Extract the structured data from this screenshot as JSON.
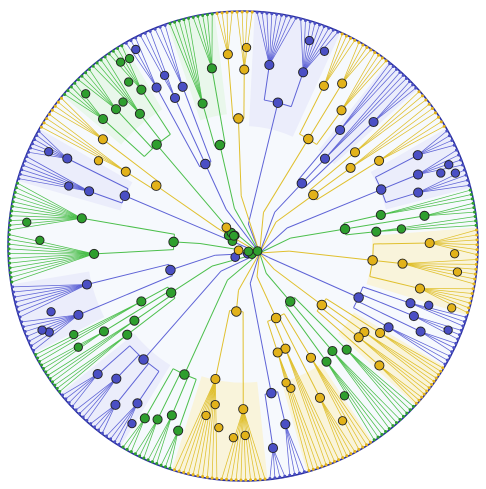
{
  "figure": {
    "type": "radial-phylogenetic-tree",
    "lineage_colors": {
      "green": "#4cbf4c",
      "blue": "#5e63d6",
      "yellow": "#e0c02e"
    },
    "node_fill_colors": {
      "green": "#2e9e2e",
      "blue": "#4a4fc4",
      "yellow": "#e2b21a"
    },
    "disc_background": "#f6f9fd",
    "outer_ring_color": "#2a2f9e",
    "sector_tint_colors": {
      "green": "#e4f5e4",
      "blue": "#e7e8fa",
      "yellow": "#faf1cf"
    },
    "clades": [
      {
        "color": "blue",
        "sweep_deg": 22
      },
      {
        "color": "yellow",
        "sweep_deg": 14
      },
      {
        "color": "blue",
        "sweep_deg": 10
      },
      {
        "color": "yellow",
        "sweep_deg": 12
      },
      {
        "color": "blue",
        "sweep_deg": 16
      },
      {
        "color": "green",
        "sweep_deg": 10
      },
      {
        "color": "yellow",
        "sweep_deg": 22
      },
      {
        "color": "blue",
        "sweep_deg": 14
      },
      {
        "color": "yellow",
        "sweep_deg": 12
      },
      {
        "color": "green",
        "sweep_deg": 14
      },
      {
        "color": "yellow",
        "sweep_deg": 18
      },
      {
        "color": "blue",
        "sweep_deg": 10
      },
      {
        "color": "yellow",
        "sweep_deg": 24
      },
      {
        "color": "green",
        "sweep_deg": 14
      },
      {
        "color": "blue",
        "sweep_deg": 20
      },
      {
        "color": "green",
        "sweep_deg": 12
      },
      {
        "color": "blue",
        "sweep_deg": 18
      },
      {
        "color": "green",
        "sweep_deg": 26
      },
      {
        "color": "blue",
        "sweep_deg": 14
      },
      {
        "color": "yellow",
        "sweep_deg": 10
      },
      {
        "color": "green",
        "sweep_deg": 20
      },
      {
        "color": "blue",
        "sweep_deg": 12
      },
      {
        "color": "green",
        "sweep_deg": 12
      },
      {
        "color": "yellow",
        "sweep_deg": 10
      }
    ]
  }
}
